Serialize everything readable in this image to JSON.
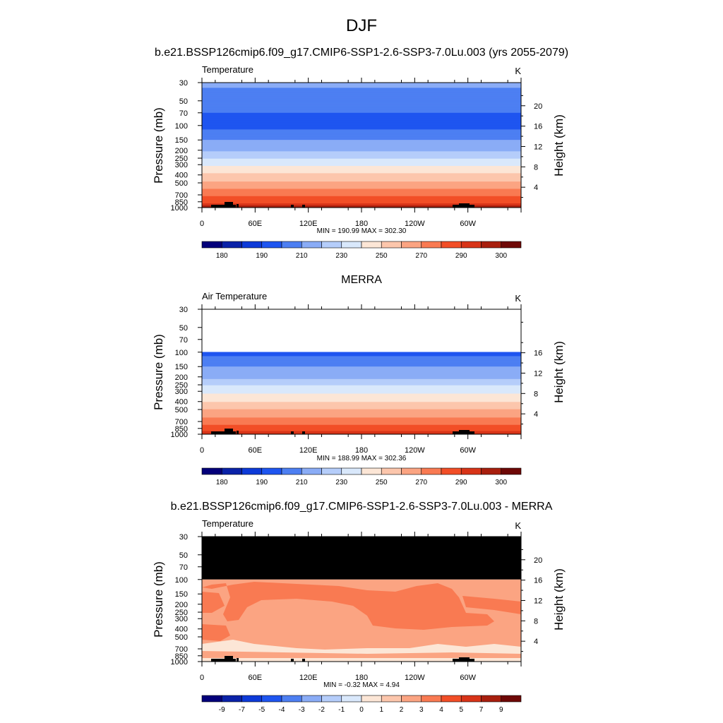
{
  "figure": {
    "title": "DJF"
  },
  "colors": {
    "abs_palette": [
      "#04007a",
      "#0a22a8",
      "#0d3ad8",
      "#1e55f0",
      "#4d7ff2",
      "#8aacf6",
      "#b5cdfa",
      "#d9e8fb",
      "#fce6d6",
      "#fcc6ac",
      "#fba482",
      "#f97a52",
      "#f24e27",
      "#d83418",
      "#a81f0e",
      "#6e0806"
    ],
    "diff_palette": [
      "#04007a",
      "#0a22a8",
      "#0d3ad8",
      "#1e55f0",
      "#4d7ff2",
      "#8aacf6",
      "#b5cdfa",
      "#d9e8fb",
      "#fce6d6",
      "#fcc6ac",
      "#fba482",
      "#f97a52",
      "#f24e27",
      "#d83418",
      "#a81f0e",
      "#6e0806"
    ],
    "missing": "#000000"
  },
  "chart_data": [
    {
      "type": "heatmap",
      "title": "b.e21.BSSP126cmip6.f09_g17.CMIP6-SSP1-2.6-SSP3-7.0Lu.003 (yrs 2055-2079)",
      "left_label": "Temperature",
      "units": "K",
      "ylabel": "Pressure (mb)",
      "ylabel_right": "Height (km)",
      "xticks": [
        "0",
        "60E",
        "120E",
        "180",
        "120W",
        "60W"
      ],
      "yticks": [
        "30",
        "50",
        "70",
        "100",
        "150",
        "200",
        "250",
        "300",
        "400",
        "500",
        "700",
        "850",
        "1000"
      ],
      "yticks_right": [
        "20",
        "16",
        "12",
        "8",
        "4"
      ],
      "ylim": [
        30,
        1000
      ],
      "yscale": "log",
      "stats": "MIN = 190.99  MAX = 302.30",
      "colorbar_labels": [
        "180",
        "190",
        "210",
        "230",
        "250",
        "270",
        "290",
        "300"
      ],
      "profile": [
        {
          "p": 30,
          "value": 212
        },
        {
          "p": 50,
          "value": 205
        },
        {
          "p": 70,
          "value": 200
        },
        {
          "p": 100,
          "value": 197
        },
        {
          "p": 130,
          "value": 205
        },
        {
          "p": 150,
          "value": 210
        },
        {
          "p": 200,
          "value": 218
        },
        {
          "p": 250,
          "value": 230
        },
        {
          "p": 300,
          "value": 238
        },
        {
          "p": 400,
          "value": 252
        },
        {
          "p": 500,
          "value": 262
        },
        {
          "p": 700,
          "value": 278
        },
        {
          "p": 850,
          "value": 288
        },
        {
          "p": 1000,
          "value": 298
        }
      ],
      "mask_top_p": null
    },
    {
      "type": "heatmap",
      "title": "MERRA",
      "left_label": "Air Temperature",
      "units": "K",
      "ylabel": "Pressure (mb)",
      "ylabel_right": "Height (km)",
      "xticks": [
        "0",
        "60E",
        "120E",
        "180",
        "120W",
        "60W"
      ],
      "yticks": [
        "30",
        "50",
        "70",
        "100",
        "150",
        "200",
        "250",
        "300",
        "400",
        "500",
        "700",
        "850",
        "1000"
      ],
      "yticks_right": [
        "16",
        "12",
        "8",
        "4"
      ],
      "ylim": [
        30,
        1000
      ],
      "yscale": "log",
      "stats": "MIN = 188.99  MAX = 302.36",
      "colorbar_labels": [
        "180",
        "190",
        "210",
        "230",
        "250",
        "270",
        "290",
        "300"
      ],
      "profile": [
        {
          "p": 100,
          "value": 197
        },
        {
          "p": 130,
          "value": 204
        },
        {
          "p": 150,
          "value": 210
        },
        {
          "p": 200,
          "value": 217
        },
        {
          "p": 250,
          "value": 229
        },
        {
          "p": 300,
          "value": 237
        },
        {
          "p": 400,
          "value": 250
        },
        {
          "p": 500,
          "value": 260
        },
        {
          "p": 700,
          "value": 275
        },
        {
          "p": 850,
          "value": 285
        },
        {
          "p": 1000,
          "value": 295
        }
      ],
      "blank_above_p": 100
    },
    {
      "type": "heatmap",
      "title": "b.e21.BSSP126cmip6.f09_g17.CMIP6-SSP1-2.6-SSP3-7.0Lu.003 - MERRA",
      "left_label": "Temperature",
      "units": "K",
      "ylabel": "Pressure (mb)",
      "ylabel_right": "Height (km)",
      "xticks": [
        "0",
        "60E",
        "120E",
        "180",
        "120W",
        "60W"
      ],
      "yticks": [
        "30",
        "50",
        "70",
        "100",
        "150",
        "200",
        "250",
        "300",
        "400",
        "500",
        "700",
        "850",
        "1000"
      ],
      "yticks_right": [
        "20",
        "16",
        "12",
        "8",
        "4"
      ],
      "ylim": [
        30,
        1000
      ],
      "yscale": "log",
      "stats": "MIN =  -0.32  MAX =   4.94",
      "colorbar_labels": [
        "-9",
        "-7",
        "-5",
        "-4",
        "-3",
        "-2",
        "-1",
        "0",
        "1",
        "2",
        "3",
        "4",
        "5",
        "7",
        "9"
      ],
      "mask_above_p": 100,
      "regions": [
        {
          "name": "2 to 3",
          "value": 2.5
        },
        {
          "name": "3 to 4",
          "value": 3.5
        },
        {
          "name": "0 to 1",
          "value": 0.5
        }
      ]
    }
  ]
}
